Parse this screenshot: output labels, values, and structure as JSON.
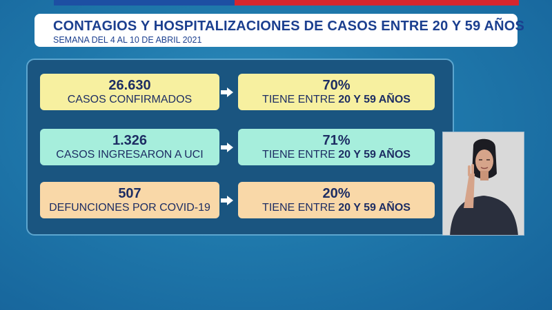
{
  "header": {
    "title": "CONTAGIOS Y HOSPITALIZACIONES DE CASOS ENTRE 20 Y 59 AÑOS",
    "subtitle": "SEMANA DEL 4 AL 10 DE ABRIL 2021"
  },
  "rows": [
    {
      "value": "26.630",
      "label": "CASOS CONFIRMADOS",
      "percent": "70%",
      "percent_prefix": "TIENE ENTRE ",
      "percent_emphasis": "20 Y 59 AÑOS",
      "color": "#f7f0a0"
    },
    {
      "value": "1.326",
      "label": "CASOS INGRESARON A UCI",
      "percent": "71%",
      "percent_prefix": "TIENE ENTRE ",
      "percent_emphasis": "20 Y 59 AÑOS",
      "color": "#a6eedc"
    },
    {
      "value": "507",
      "label": "DEFUNCIONES POR COVID-19",
      "percent": "20%",
      "percent_prefix": "TIENE ENTRE ",
      "percent_emphasis": "20 Y 59 AÑOS",
      "color": "#f9d8a8"
    }
  ],
  "icons": {
    "arrow": "arrow-right-icon",
    "interpreter": "sign-language-interpreter"
  },
  "colors": {
    "background": "#1f78ab",
    "panel": "#1a5580",
    "title_text": "#1b3f8f",
    "flag_blue": "#1d4fa3",
    "flag_red": "#d6262e"
  }
}
